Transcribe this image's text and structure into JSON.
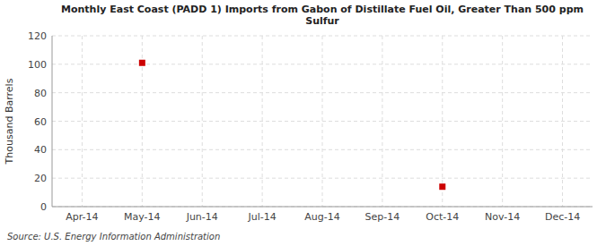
{
  "chart_data": {
    "type": "scatter",
    "title": "Monthly East Coast (PADD 1) Imports from Gabon of Distillate Fuel Oil, Greater Than 500 ppm\nSulfur",
    "y_label": "Thousand Barrels",
    "source": "Source: U.S. Energy Information Administration",
    "categories": [
      "Apr-14",
      "May-14",
      "Jun-14",
      "Jul-14",
      "Aug-14",
      "Sep-14",
      "Oct-14",
      "Nov-14",
      "Dec-14"
    ],
    "values": [
      null,
      101,
      null,
      null,
      null,
      null,
      14,
      null,
      null
    ],
    "color": "#cc0000",
    "marker": "square",
    "ylim": [
      0,
      120
    ],
    "yticks": [
      0,
      20,
      40,
      60,
      80,
      100,
      120
    ],
    "grid": true
  }
}
